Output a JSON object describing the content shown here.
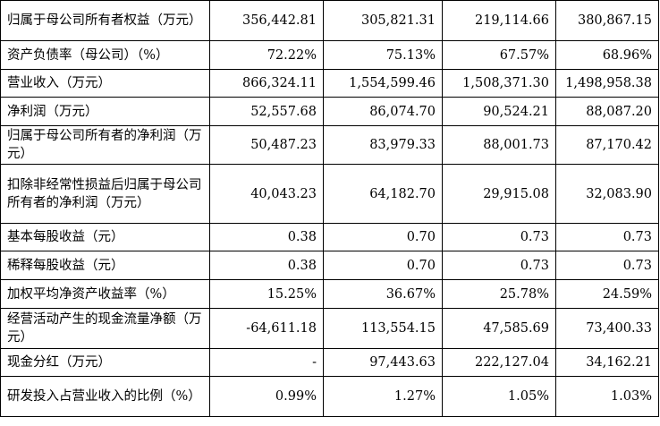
{
  "rows": [
    {
      "label": "归属于母公司所有者权益（万元）",
      "values": [
        "356,442.81",
        "305,821.31",
        "219,114.66",
        "380,867.15"
      ]
    },
    {
      "label": "资产负债率（母公司）（%）",
      "values": [
        "72.22%",
        "75.13%",
        "67.57%",
        "68.96%"
      ]
    },
    {
      "label": "营业收入（万元）",
      "values": [
        "866,324.11",
        "1,554,599.46",
        "1,508,371.30",
        "1,498,958.38"
      ]
    },
    {
      "label": "净利润（万元）",
      "values": [
        "52,557.68",
        "86,074.70",
        "90,524.21",
        "88,087.20"
      ]
    },
    {
      "label": "归属于母公司所有者的净利润（万元）",
      "values": [
        "50,487.23",
        "83,979.33",
        "88,001.73",
        "87,170.42"
      ]
    },
    {
      "label": "扣除非经常性损益后归属于母公司所有者的净利润（万元）",
      "values": [
        "40,043.23",
        "64,182.70",
        "29,915.08",
        "32,083.90"
      ]
    },
    {
      "label": "基本每股收益（元）",
      "values": [
        "0.38",
        "0.70",
        "0.73",
        "0.73"
      ]
    },
    {
      "label": "稀释每股收益（元）",
      "values": [
        "0.38",
        "0.70",
        "0.73",
        "0.73"
      ]
    },
    {
      "label": "加权平均净资产收益率（%）",
      "values": [
        "15.25%",
        "36.67%",
        "25.78%",
        "24.59%"
      ]
    },
    {
      "label": "经营活动产生的现金流量净额（万元）",
      "values": [
        "-64,611.18",
        "113,554.15",
        "47,585.69",
        "73,400.33"
      ]
    },
    {
      "label": "现金分红（万元）",
      "values": [
        "-",
        "97,443.63",
        "222,127.04",
        "34,162.21"
      ]
    },
    {
      "label": "研发投入占营业收入的比例（%）",
      "values": [
        "0.99%",
        "1.27%",
        "1.05%",
        "1.03%"
      ]
    }
  ]
}
